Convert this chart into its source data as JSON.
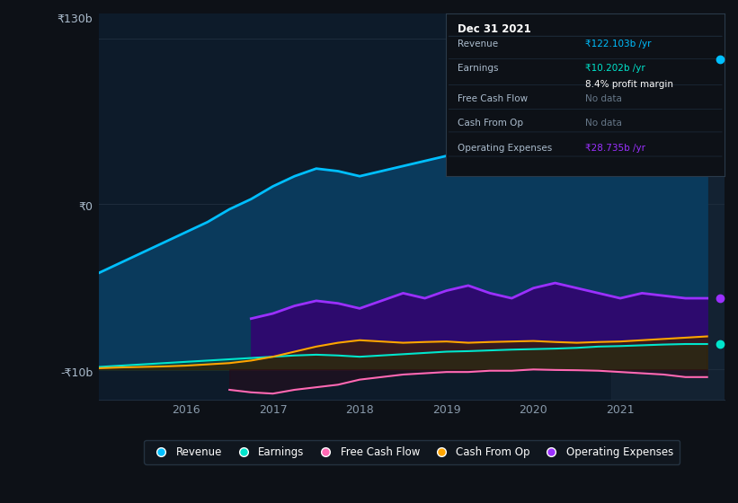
{
  "bg_color": "#0d1117",
  "plot_bg_color": "#0d1b2a",
  "grid_color": "#1e2d3d",
  "title_label": "₹130b",
  "y0_label": "₹0",
  "yn_label": "-₹10b",
  "x_ticks": [
    2016,
    2017,
    2018,
    2019,
    2020,
    2021
  ],
  "ylim": [
    -12,
    140
  ],
  "xlim_start": 2015.0,
  "xlim_end": 2022.2,
  "revenue_color": "#00bfff",
  "revenue_fill": "#0a3a5c",
  "earnings_color": "#00e5cc",
  "free_cashflow_color": "#ff69b4",
  "cashfromop_color": "#ffa500",
  "opex_color": "#9b30ff",
  "opex_fill": "#2d0a6e",
  "legend_bg": "#111820",
  "legend_border": "#2a3a4a",
  "revenue": {
    "x": [
      2015.0,
      2015.25,
      2015.5,
      2015.75,
      2016.0,
      2016.25,
      2016.5,
      2016.75,
      2017.0,
      2017.25,
      2017.5,
      2017.75,
      2018.0,
      2018.25,
      2018.5,
      2018.75,
      2019.0,
      2019.25,
      2019.5,
      2019.75,
      2020.0,
      2020.25,
      2020.5,
      2020.75,
      2021.0,
      2021.25,
      2021.5,
      2021.75,
      2022.0
    ],
    "y": [
      38,
      42,
      46,
      50,
      54,
      58,
      63,
      67,
      72,
      76,
      79,
      78,
      76,
      78,
      80,
      82,
      84,
      86,
      88,
      90,
      92,
      95,
      98,
      102,
      105,
      110,
      116,
      122,
      122
    ]
  },
  "earnings": {
    "x": [
      2015.0,
      2015.25,
      2015.5,
      2015.75,
      2016.0,
      2016.25,
      2016.5,
      2016.75,
      2017.0,
      2017.25,
      2017.5,
      2017.75,
      2018.0,
      2018.25,
      2018.5,
      2018.75,
      2019.0,
      2019.25,
      2019.5,
      2019.75,
      2020.0,
      2020.25,
      2020.5,
      2020.75,
      2021.0,
      2021.25,
      2021.5,
      2021.75,
      2022.0
    ],
    "y": [
      1,
      1.5,
      2,
      2.5,
      3,
      3.5,
      4,
      4.5,
      5,
      5.5,
      5.8,
      5.5,
      5,
      5.5,
      6,
      6.5,
      7,
      7.2,
      7.5,
      7.8,
      8,
      8.2,
      8.5,
      9,
      9.2,
      9.5,
      9.8,
      10,
      10
    ]
  },
  "free_cashflow": {
    "x": [
      2016.5,
      2016.75,
      2017.0,
      2017.25,
      2017.5,
      2017.75,
      2018.0,
      2018.25,
      2018.5,
      2018.75,
      2019.0,
      2019.25,
      2019.5,
      2019.75,
      2020.0,
      2020.25,
      2020.5,
      2020.75,
      2021.0,
      2021.25,
      2021.5,
      2021.75,
      2022.0
    ],
    "y": [
      -8,
      -9,
      -9.5,
      -8,
      -7,
      -6,
      -4,
      -3,
      -2,
      -1.5,
      -1,
      -1,
      -0.5,
      -0.5,
      0,
      -0.2,
      -0.3,
      -0.5,
      -1,
      -1.5,
      -2,
      -3,
      -3
    ]
  },
  "cashfromop": {
    "x": [
      2015.0,
      2015.25,
      2015.5,
      2015.75,
      2016.0,
      2016.25,
      2016.5,
      2016.75,
      2017.0,
      2017.25,
      2017.5,
      2017.75,
      2018.0,
      2018.25,
      2018.5,
      2018.75,
      2019.0,
      2019.25,
      2019.5,
      2019.75,
      2020.0,
      2020.25,
      2020.5,
      2020.75,
      2021.0,
      2021.25,
      2021.5,
      2021.75,
      2022.0
    ],
    "y": [
      0.5,
      0.8,
      1.0,
      1.2,
      1.5,
      2.0,
      2.5,
      3.5,
      5.0,
      7.0,
      9.0,
      10.5,
      11.5,
      11.0,
      10.5,
      10.8,
      11.0,
      10.5,
      10.8,
      11.0,
      11.2,
      10.8,
      10.5,
      10.8,
      11.0,
      11.5,
      12.0,
      12.5,
      13
    ]
  },
  "opex": {
    "x": [
      2016.75,
      2017.0,
      2017.25,
      2017.5,
      2017.75,
      2018.0,
      2018.25,
      2018.5,
      2018.75,
      2019.0,
      2019.25,
      2019.5,
      2019.75,
      2020.0,
      2020.25,
      2020.5,
      2020.75,
      2021.0,
      2021.25,
      2021.5,
      2021.75,
      2022.0
    ],
    "y": [
      20,
      22,
      25,
      27,
      26,
      24,
      27,
      30,
      28,
      31,
      33,
      30,
      28,
      32,
      34,
      32,
      30,
      28,
      30,
      29,
      28,
      28
    ]
  },
  "info_box": {
    "date": "Dec 31 2021",
    "revenue_val": "₹122.103b",
    "revenue_color": "#00bfff",
    "earnings_val": "₹10.202b",
    "earnings_color": "#00e5cc",
    "profit_margin": "8.4% profit margin",
    "fcf_val": "No data",
    "cashfromop_val": "No data",
    "opex_val": "₹28.735b",
    "opex_color": "#9b30ff"
  },
  "legend_items": [
    {
      "label": "Revenue",
      "color": "#00bfff"
    },
    {
      "label": "Earnings",
      "color": "#00e5cc"
    },
    {
      "label": "Free Cash Flow",
      "color": "#ff69b4"
    },
    {
      "label": "Cash From Op",
      "color": "#ffa500"
    },
    {
      "label": "Operating Expenses",
      "color": "#9b30ff"
    }
  ]
}
